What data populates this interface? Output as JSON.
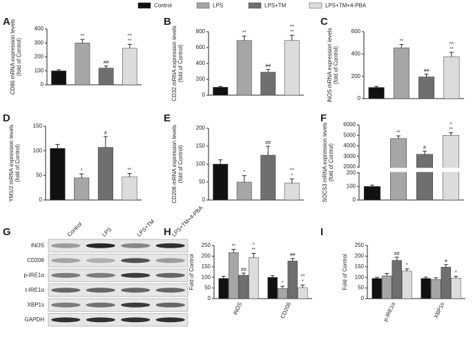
{
  "legend": [
    {
      "name": "Control",
      "color": "#111111"
    },
    {
      "name": "LPS",
      "color": "#a6a6a6"
    },
    {
      "name": "LPS+TM",
      "color": "#6f6f6f"
    },
    {
      "name": "LPS+TM+4-PBA",
      "color": "#dcdcdc"
    }
  ],
  "chart_data": [
    {
      "type": "bar",
      "letter": "A",
      "ylabel": [
        "CD86 mRNA expression levels",
        "(fold of Control)"
      ],
      "values": [
        100,
        300,
        120,
        262
      ],
      "errors": [
        8,
        25,
        15,
        28
      ],
      "annotations": [
        null,
        [
          "**"
        ],
        [
          "##"
        ],
        [
          "^^",
          "**"
        ]
      ],
      "ylim": [
        0,
        400
      ],
      "yticks": [
        0,
        100,
        200,
        300,
        400
      ]
    },
    {
      "type": "bar",
      "letter": "B",
      "ylabel": [
        "CD32 mRNA expression levels",
        "(fold of Control)"
      ],
      "values": [
        100,
        690,
        290,
        690
      ],
      "errors": [
        10,
        55,
        35,
        65
      ],
      "annotations": [
        null,
        [
          "**"
        ],
        [
          "##"
        ],
        [
          "^^",
          "**"
        ]
      ],
      "ylim": [
        0,
        800
      ],
      "yticks": [
        0,
        200,
        400,
        600,
        800
      ]
    },
    {
      "type": "bar",
      "letter": "C",
      "ylabel": [
        "iNOS mRNA expression levels",
        "(fold of Control)"
      ],
      "values": [
        100,
        455,
        195,
        375
      ],
      "errors": [
        10,
        30,
        25,
        40
      ],
      "annotations": [
        null,
        [
          "**"
        ],
        [
          "##"
        ],
        [
          "^^",
          "**"
        ]
      ],
      "ylim": [
        0,
        600
      ],
      "yticks": [
        0,
        200,
        400,
        600
      ]
    },
    {
      "type": "bar",
      "letter": "D",
      "ylabel": [
        "YM1/2 mRNA expression levels",
        "(fold of Control)"
      ],
      "values": [
        105,
        45,
        107,
        47
      ],
      "errors": [
        8,
        8,
        22,
        7
      ],
      "annotations": [
        null,
        [
          "*"
        ],
        [
          "#"
        ],
        [
          "*^"
        ]
      ],
      "ylim": [
        0,
        150
      ],
      "yticks": [
        0,
        50,
        100,
        150
      ]
    },
    {
      "type": "bar",
      "letter": "E",
      "ylabel": [
        "CD206 mRNA expression levels",
        "(fold of Control)"
      ],
      "values": [
        100,
        50,
        125,
        47
      ],
      "errors": [
        12,
        18,
        25,
        12
      ],
      "annotations": [
        null,
        [
          "*"
        ],
        [
          "##"
        ],
        [
          "^^",
          "*"
        ]
      ],
      "ylim": [
        0,
        200
      ],
      "yticks": [
        0,
        50,
        100,
        150,
        200
      ]
    },
    {
      "type": "bar",
      "letter": "F",
      "ylabel": [
        "SOCS3 mRNA expression levels",
        "(fold of Control)"
      ],
      "values": [
        100,
        4700,
        3200,
        5000
      ],
      "errors": [
        10,
        250,
        300,
        250
      ],
      "annotations": [
        null,
        [
          "**"
        ],
        [
          "#"
        ],
        [
          "^",
          "**"
        ]
      ],
      "ylim": [
        0,
        6000
      ],
      "axis_break": [
        200,
        2000
      ],
      "yticks": [
        0,
        100,
        200,
        2000,
        3000,
        4000,
        5000,
        6000
      ]
    },
    {
      "type": "grouped_bar",
      "letter": "H",
      "ylabel": [
        "Fold of Control"
      ],
      "categories": [
        "iNOS",
        "CD206"
      ],
      "series": [
        {
          "values": [
            95,
            100
          ],
          "errors": [
            10,
            8
          ],
          "annotations": [
            null,
            null
          ]
        },
        {
          "values": [
            217,
            48
          ],
          "errors": [
            15,
            10
          ],
          "annotations": [
            [
              "**"
            ],
            [
              "*"
            ]
          ]
        },
        {
          "values": [
            110,
            177
          ],
          "errors": [
            10,
            12
          ],
          "annotations": [
            [
              "##"
            ],
            [
              "##"
            ]
          ]
        },
        {
          "values": [
            193,
            52
          ],
          "errors": [
            20,
            12
          ],
          "annotations": [
            [
              "^",
              "**"
            ],
            [
              "^^",
              "*"
            ]
          ]
        }
      ],
      "ylim": [
        0,
        250
      ],
      "yticks": [
        0,
        50,
        100,
        150,
        200,
        250
      ]
    },
    {
      "type": "grouped_bar",
      "letter": "I",
      "ylabel": [
        "Fold of Control"
      ],
      "categories": [
        "p-IRE1α",
        "XBP1s"
      ],
      "series": [
        {
          "values": [
            95,
            95
          ],
          "errors": [
            5,
            6
          ],
          "annotations": [
            null,
            null
          ]
        },
        {
          "values": [
            107,
            90
          ],
          "errors": [
            12,
            8
          ],
          "annotations": [
            null,
            null
          ]
        },
        {
          "values": [
            180,
            148
          ],
          "errors": [
            15,
            12
          ],
          "annotations": [
            [
              "##"
            ],
            [
              "#"
            ]
          ]
        },
        {
          "values": [
            130,
            97
          ],
          "errors": [
            10,
            8
          ],
          "annotations": [
            [
              "^"
            ],
            [
              "^"
            ]
          ]
        }
      ],
      "ylim": [
        0,
        250
      ],
      "yticks": [
        0,
        50,
        100,
        150,
        200,
        250
      ]
    }
  ],
  "blot": {
    "letter": "G",
    "columns": [
      "Control",
      "LPS",
      "LPS+TM",
      "LPS+TM+4-PBA"
    ],
    "rows": [
      "iNOS",
      "CD206",
      "p-IRE1α",
      "t-IRE1α",
      "XBP1s",
      "GAPDH"
    ]
  }
}
